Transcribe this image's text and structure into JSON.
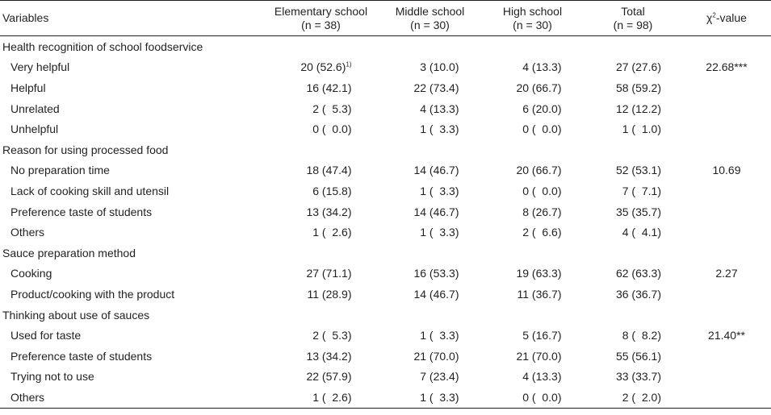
{
  "columns": {
    "variables": "Variables",
    "elementary": {
      "name": "Elementary school",
      "n": "(n = 38)"
    },
    "middle": {
      "name": "Middle school",
      "n": "(n = 30)"
    },
    "high": {
      "name": "High school",
      "n": "(n = 30)"
    },
    "total": {
      "name": "Total",
      "n": "(n = 98)"
    },
    "chi": {
      "symbol": "χ",
      "exp": "2",
      "suffix": "-value"
    }
  },
  "footnote_marker": "1)",
  "groups": [
    {
      "title": "Health recognition of school foodservice",
      "rows": [
        {
          "label": "Very helpful",
          "e": "20 (52.6)",
          "m": "3 (10.0)",
          "h": "4 (13.3)",
          "t": "27 (27.6)",
          "chi": "22.68***"
        },
        {
          "label": "Helpful",
          "e": "16 (42.1)",
          "m": "22 (73.4)",
          "h": "20 (66.7)",
          "t": "58 (59.2)",
          "chi": ""
        },
        {
          "label": "Unrelated",
          "e": "2 (  5.3)",
          "m": "4 (13.3)",
          "h": "6 (20.0)",
          "t": "12 (12.2)",
          "chi": ""
        },
        {
          "label": "Unhelpful",
          "e": "0 (  0.0)",
          "m": "1 (  3.3)",
          "h": "0 (  0.0)",
          "t": "1 (  1.0)",
          "chi": ""
        }
      ]
    },
    {
      "title": "Reason for using processed food",
      "rows": [
        {
          "label": "No preparation time",
          "e": "18 (47.4)",
          "m": "14 (46.7)",
          "h": "20 (66.7)",
          "t": "52 (53.1)",
          "chi": "10.69"
        },
        {
          "label": "Lack of cooking skill and utensil",
          "e": "6 (15.8)",
          "m": "1 (  3.3)",
          "h": "0 (  0.0)",
          "t": "7 (  7.1)",
          "chi": ""
        },
        {
          "label": "Preference taste of students",
          "e": "13 (34.2)",
          "m": "14 (46.7)",
          "h": "8 (26.7)",
          "t": "35 (35.7)",
          "chi": ""
        },
        {
          "label": "Others",
          "e": "1 (  2.6)",
          "m": "1 (  3.3)",
          "h": "2 (  6.6)",
          "t": "4 (  4.1)",
          "chi": ""
        }
      ]
    },
    {
      "title": "Sauce preparation method",
      "rows": [
        {
          "label": "Cooking",
          "e": "27 (71.1)",
          "m": "16 (53.3)",
          "h": "19 (63.3)",
          "t": "62 (63.3)",
          "chi": "2.27"
        },
        {
          "label": "Product/cooking with the product",
          "e": "11 (28.9)",
          "m": "14 (46.7)",
          "h": "11 (36.7)",
          "t": "36 (36.7)",
          "chi": ""
        }
      ]
    },
    {
      "title": "Thinking about use of sauces",
      "rows": [
        {
          "label": "Used for taste",
          "e": "2 (  5.3)",
          "m": "1 (  3.3)",
          "h": "5 (16.7)",
          "t": "8 (  8.2)",
          "chi": "21.40**"
        },
        {
          "label": "Preference taste of students",
          "e": "13 (34.2)",
          "m": "21 (70.0)",
          "h": "21 (70.0)",
          "t": "55 (56.1)",
          "chi": ""
        },
        {
          "label": "Trying not to use",
          "e": "22 (57.9)",
          "m": "7 (23.4)",
          "h": "4 (13.3)",
          "t": "33 (33.7)",
          "chi": ""
        },
        {
          "label": "Others",
          "e": "1 (  2.6)",
          "m": "1 (  3.3)",
          "h": "0 (  0.0)",
          "t": "2 (  2.0)",
          "chi": ""
        }
      ]
    }
  ]
}
